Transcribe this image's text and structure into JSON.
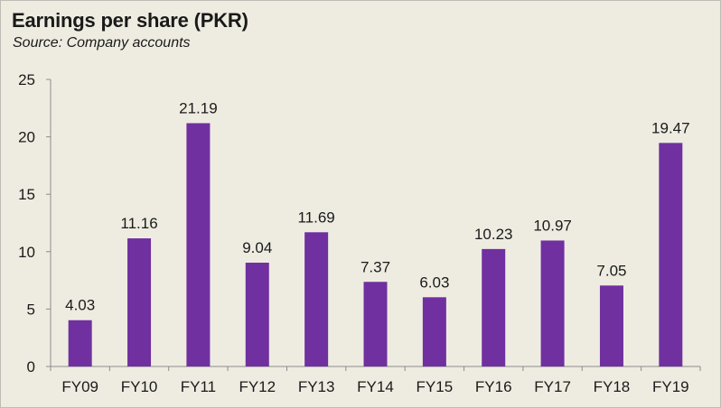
{
  "header": {
    "title": "Earnings per share (PKR)",
    "subtitle": "Source: Company accounts"
  },
  "colors": {
    "bar": "#7030a0",
    "background": "#eeece1",
    "axis": "#8c8c8c"
  },
  "chart_data": {
    "type": "bar",
    "title": "Earnings per share (PKR)",
    "subtitle": "Source: Company accounts",
    "xlabel": "",
    "ylabel": "",
    "categories": [
      "FY09",
      "FY10",
      "FY11",
      "FY12",
      "FY13",
      "FY14",
      "FY15",
      "FY16",
      "FY17",
      "FY18",
      "FY19"
    ],
    "values": [
      4.03,
      11.16,
      21.19,
      9.04,
      11.69,
      7.37,
      6.03,
      10.23,
      10.97,
      7.05,
      19.47
    ],
    "value_labels": [
      "4.03",
      "11.16",
      "21.19",
      "9.04",
      "11.69",
      "7.37",
      "6.03",
      "10.23",
      "10.97",
      "7.05",
      "19.47"
    ],
    "ylim": [
      0,
      25
    ],
    "yticks": [
      0,
      5,
      10,
      15,
      20,
      25
    ],
    "grid": false,
    "legend": "none"
  }
}
